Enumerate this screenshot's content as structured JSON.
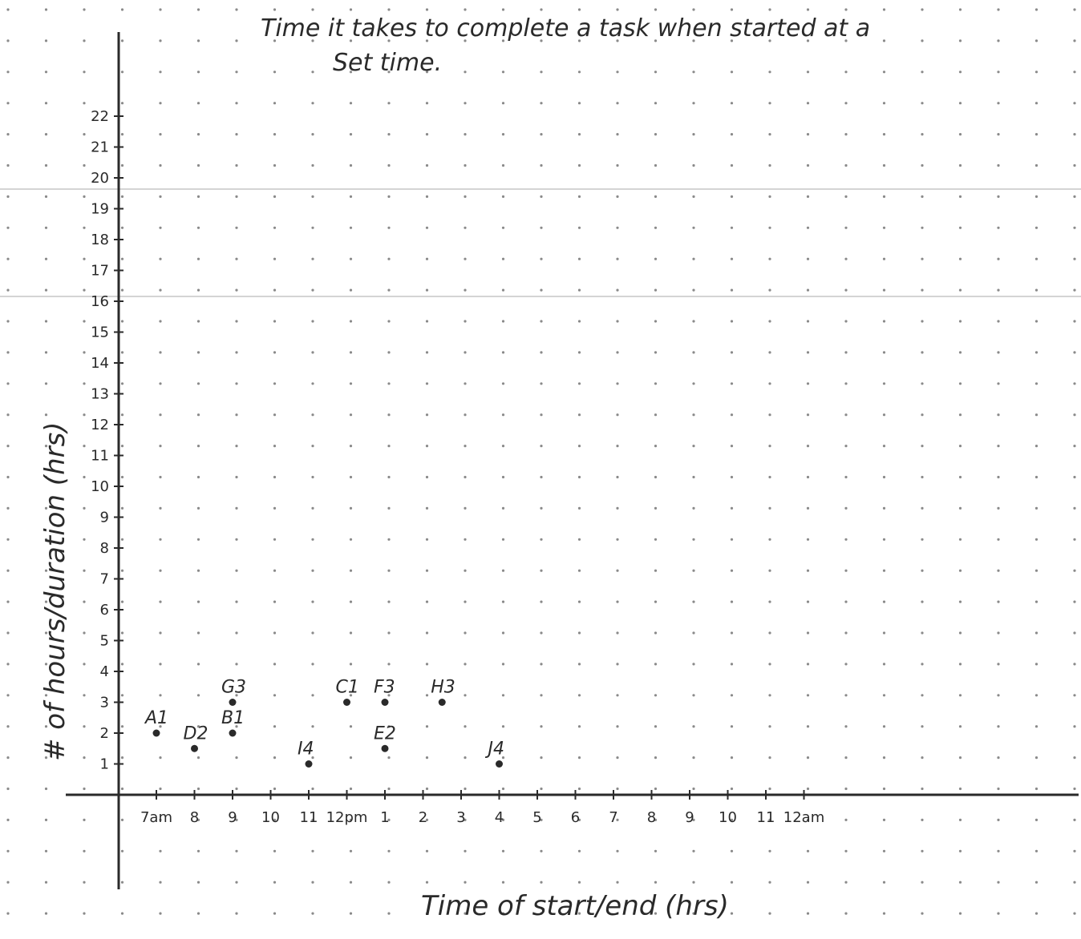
{
  "chart_data": {
    "type": "scatter",
    "title_line1": "Time it takes to complete a task when started at a",
    "title_line2": "Set time.",
    "xlabel": "Time of start/end (hrs)",
    "ylabel": "# of hours/duration (hrs)",
    "x_tick_labels": [
      "7am",
      "8",
      "9",
      "10",
      "11",
      "12pm",
      "1",
      "2",
      "3",
      "4",
      "5",
      "6",
      "7",
      "8",
      "9",
      "10",
      "11",
      "12am"
    ],
    "y_tick_labels": [
      "1",
      "2",
      "3",
      "4",
      "5",
      "6",
      "7",
      "8",
      "9",
      "10",
      "11",
      "12",
      "13",
      "14",
      "15",
      "16",
      "17",
      "18",
      "19",
      "20",
      "21",
      "22"
    ],
    "xlim": [
      7,
      25
    ],
    "ylim": [
      0,
      22
    ],
    "grid": "dotted",
    "points": [
      {
        "label": "A1",
        "x": 7,
        "y": 2
      },
      {
        "label": "D2",
        "x": 8,
        "y": 1.5
      },
      {
        "label": "G3",
        "x": 9,
        "y": 3
      },
      {
        "label": "B1",
        "x": 9,
        "y": 2
      },
      {
        "label": "I4",
        "x": 11,
        "y": 1
      },
      {
        "label": "C1",
        "x": 12,
        "y": 3
      },
      {
        "label": "F3",
        "x": 13,
        "y": 3
      },
      {
        "label": "E2",
        "x": 13,
        "y": 1.5
      },
      {
        "label": "H3",
        "x": 14.5,
        "y": 3
      },
      {
        "label": "J4",
        "x": 16,
        "y": 1
      }
    ],
    "colors": {
      "ink": "#2a2a2a",
      "dots": "#8a8a8a",
      "ruled_lines": "#d0d0d0"
    }
  }
}
